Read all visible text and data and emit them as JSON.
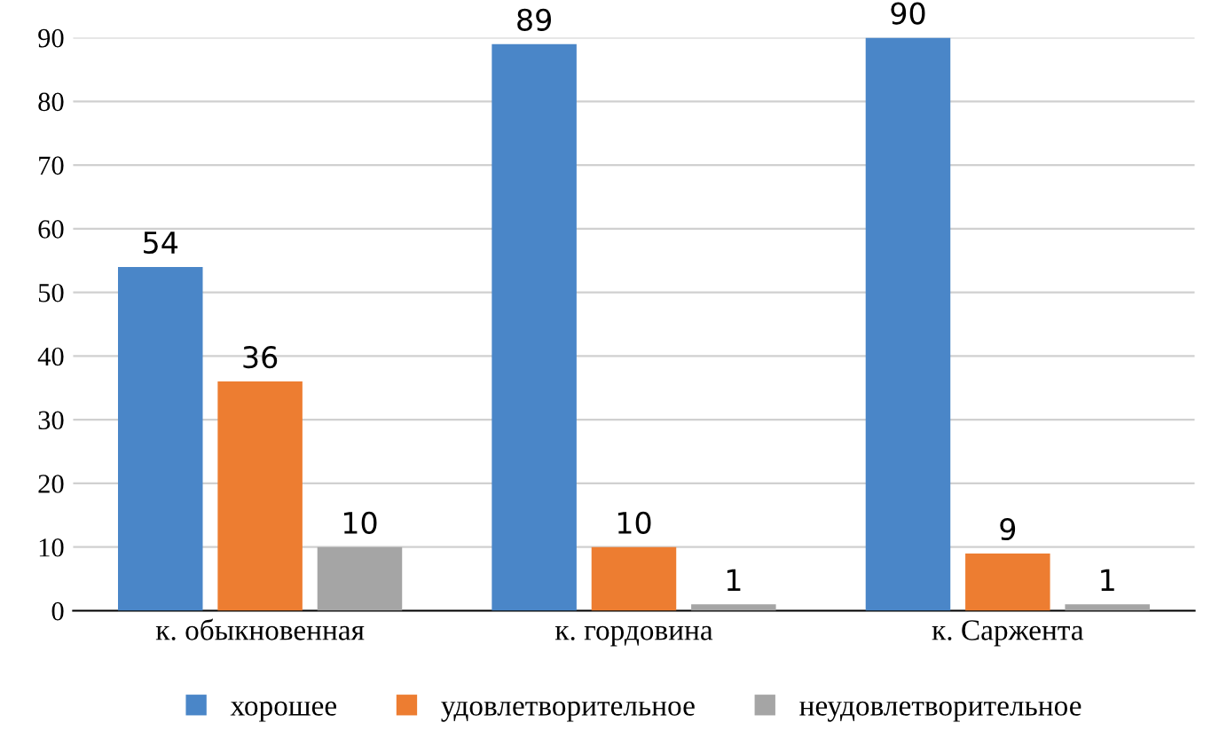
{
  "chart_data": {
    "type": "bar",
    "categories": [
      "к. обыкновенная",
      "к. гордовина",
      "к. Саржента"
    ],
    "series": [
      {
        "name": "хорошее",
        "color": "#4a86c8",
        "values": [
          54,
          89,
          90
        ]
      },
      {
        "name": "удовлетворительное",
        "color": "#ed7d31",
        "values": [
          36,
          10,
          9
        ]
      },
      {
        "name": "неудовлетворительное",
        "color": "#a5a5a5",
        "values": [
          10,
          1,
          1
        ]
      }
    ],
    "ylim": [
      0,
      90
    ],
    "yticks": [
      0,
      10,
      20,
      30,
      40,
      50,
      60,
      70,
      80,
      90
    ],
    "grid": "y",
    "legend": "bottom",
    "data_labels": true
  }
}
